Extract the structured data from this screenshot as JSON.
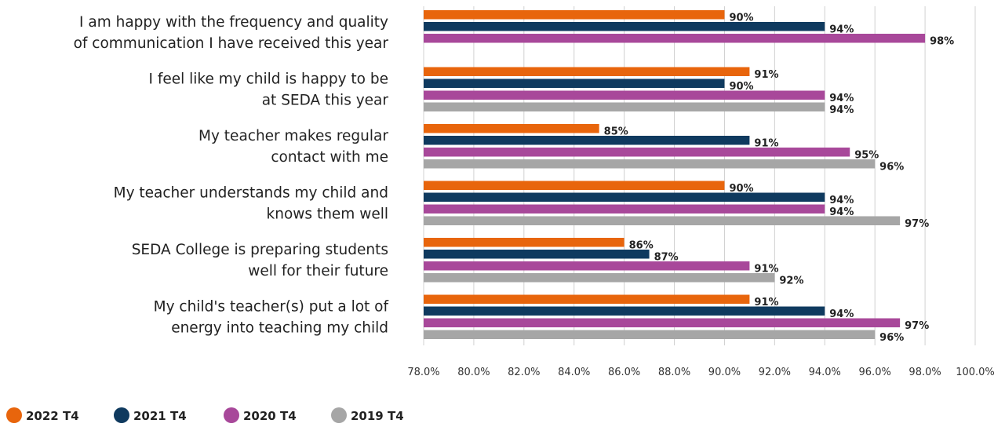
{
  "chart_data": {
    "type": "bar",
    "orientation": "horizontal",
    "categories": [
      [
        "I am happy with the frequency and quality",
        "of communication I have received this year"
      ],
      [
        "I feel like my child is happy to be",
        "at SEDA this year"
      ],
      [
        "My teacher makes regular",
        "contact with me"
      ],
      [
        "My teacher understands my child and",
        "knows them well"
      ],
      [
        "SEDA College is preparing students",
        "well for their future"
      ],
      [
        "My child's teacher(s) put a lot of",
        "energy into teaching my child"
      ]
    ],
    "series": [
      {
        "name": "2022 T4",
        "color": "#E8650C",
        "values": [
          90,
          91,
          85,
          90,
          86,
          91
        ],
        "labels": [
          "90%",
          "91%",
          "85%",
          "90%",
          "86%",
          "91%"
        ]
      },
      {
        "name": "2021 T4",
        "color": "#0F3A5F",
        "values": [
          94,
          90,
          91,
          94,
          87,
          94
        ],
        "labels": [
          "94%",
          "90%",
          "91%",
          "94%",
          "87%",
          "94%"
        ]
      },
      {
        "name": "2020 T4",
        "color": "#A8489A",
        "values": [
          98,
          94,
          95,
          94,
          91,
          97
        ],
        "labels": [
          "98%",
          "94%",
          "95%",
          "94%",
          "91%",
          "97%"
        ]
      },
      {
        "name": "2019 T4",
        "color": "#A6A6A6",
        "values": [
          null,
          94,
          96,
          97,
          92,
          96
        ],
        "labels": [
          "",
          "94%",
          "96%",
          "97%",
          "92%",
          "96%"
        ]
      }
    ],
    "xlim": [
      78,
      100
    ],
    "xticks": [
      78,
      80,
      82,
      84,
      86,
      88,
      90,
      92,
      94,
      96,
      98,
      100
    ],
    "xtick_labels": [
      "78.0%",
      "80.0%",
      "82.0%",
      "84.0%",
      "86.0%",
      "88.0%",
      "90.0%",
      "92.0%",
      "94.0%",
      "96.0%",
      "98.0%",
      "100.0%"
    ],
    "grid": "vertical",
    "legend_position": "bottom-left",
    "title": "",
    "xlabel": "",
    "ylabel": ""
  }
}
